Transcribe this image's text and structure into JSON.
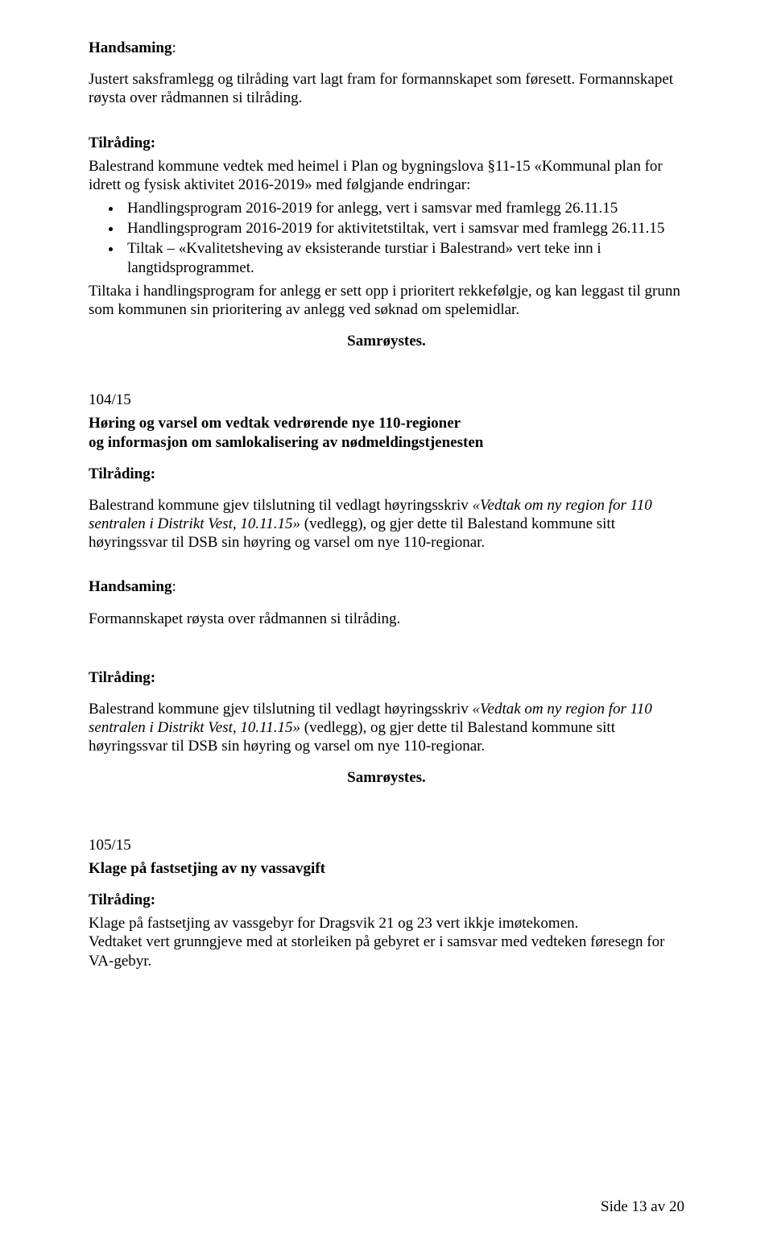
{
  "colors": {
    "text": "#000000",
    "background": "#ffffff"
  },
  "typography": {
    "font_family": "Times New Roman",
    "body_size_pt": 14,
    "line_height": 1.22
  },
  "p1": {
    "label": "Handsaming",
    "colon": ":"
  },
  "p2": "Justert saksframlegg og tilråding vart lagt fram for formannskapet som føresett. Formannskapet røysta over rådmannen si tilråding.",
  "p3": "Tilråding:",
  "p4": "Balestrand kommune vedtek med heimel i Plan og bygningslova §11-15 «Kommunal plan for idrett og fysisk aktivitet 2016-2019» med følgjande endringar:",
  "bullets1": [
    "Handlingsprogram 2016-2019 for anlegg, vert i samsvar med framlegg 26.11.15",
    "Handlingsprogram 2016-2019 for aktivitetstiltak, vert i samsvar med framlegg 26.11.15",
    "Tiltak – «Kvalitetsheving av eksisterande turstiar i Balestrand» vert teke inn i langtidsprogrammet."
  ],
  "p5": "Tiltaka i handlingsprogram for anlegg er sett opp i prioritert rekkefølgje, og kan leggast til grunn som kommunen sin prioritering av anlegg ved søknad om spelemidlar.",
  "p6": "Samrøystes.",
  "p7": "104/15",
  "p8a": "Høring og varsel om vedtak vedrørende nye 110-regioner",
  "p8b": "og informasjon om samlokalisering av nødmeldingstjenesten",
  "p9": "Tilråding:",
  "p10_a": "Balestrand kommune gjev tilslutning til vedlagt høyringsskriv ",
  "p10_i": "«Vedtak om ny region for 110 sentralen i Distrikt Vest, 10.11.15»",
  "p10_b": " (vedlegg), og gjer dette til Balestand kommune sitt høyringssvar til DSB sin høyring og varsel om nye 110-regionar.",
  "p11": {
    "label": "Handsaming",
    "colon": ":"
  },
  "p12": "Formannskapet røysta over rådmannen si tilråding.",
  "p13": "Tilråding:",
  "p14_a": "Balestrand kommune gjev tilslutning til vedlagt høyringsskriv ",
  "p14_i": "«Vedtak om ny region for 110 sentralen i Distrikt Vest, 10.11.15»",
  "p14_b": " (vedlegg), og gjer dette til Balestand kommune sitt høyringssvar til DSB sin høyring og varsel om nye 110-regionar.",
  "p15": "Samrøystes.",
  "p16": "105/15",
  "p17": "Klage på fastsetjing av ny vassavgift",
  "p18": "Tilråding:",
  "p19": "Klage på fastsetjing av vassgebyr for Dragsvik 21 og 23 vert ikkje imøtekomen.",
  "p20": "Vedtaket vert grunngjeve med at storleiken på gebyret er i samsvar med vedteken føresegn for VA-gebyr.",
  "footer": "Side 13 av 20"
}
